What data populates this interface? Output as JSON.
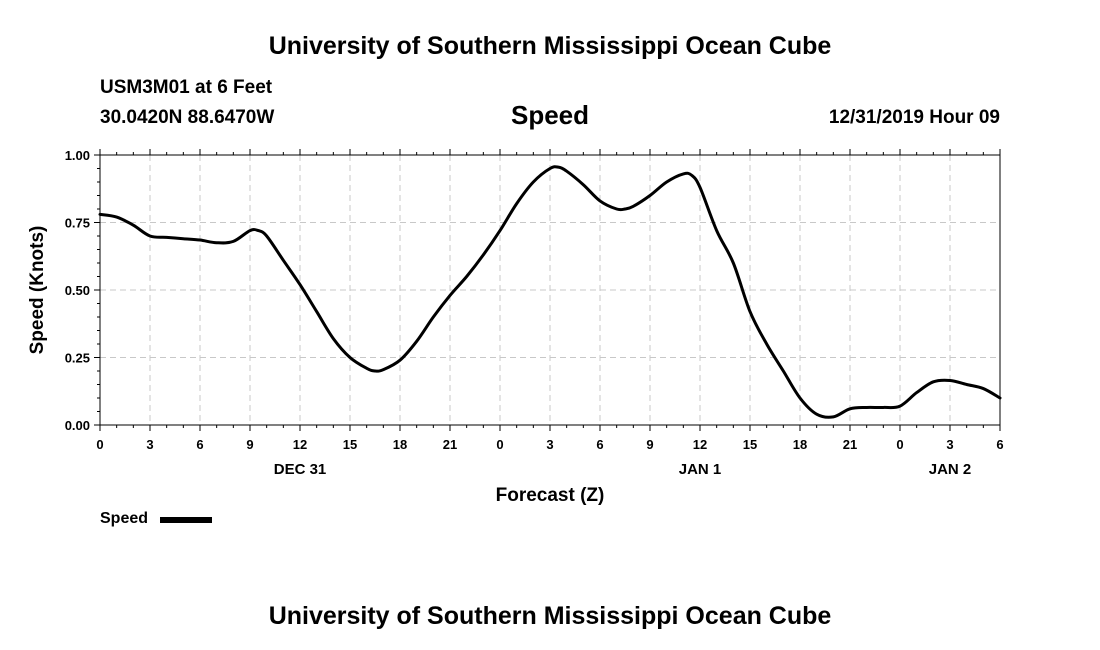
{
  "header": {
    "title_top": "University of Southern Mississippi Ocean Cube",
    "station": "USM3M01 at 6 Feet",
    "coordinates": "30.0420N 88.6470W",
    "parameter": "Speed",
    "datetime": "12/31/2019 Hour 09"
  },
  "footer": {
    "title_bottom": "University of Southern Mississippi Ocean Cube"
  },
  "legend": {
    "label": "Speed"
  },
  "chart_data": {
    "type": "line",
    "title": "Speed",
    "xlabel": "Forecast (Z)",
    "ylabel": "Speed (Knots)",
    "xlim": [
      0,
      54
    ],
    "ylim": [
      0,
      1
    ],
    "grid": true,
    "legend_position": "bottom-left",
    "x_ticks": [
      0,
      3,
      6,
      9,
      12,
      15,
      18,
      21,
      24,
      27,
      30,
      33,
      36,
      39,
      42,
      45,
      48,
      51,
      54
    ],
    "x_tick_labels": [
      "0",
      "3",
      "6",
      "9",
      "12",
      "15",
      "18",
      "21",
      "0",
      "3",
      "6",
      "9",
      "12",
      "15",
      "18",
      "21",
      "0",
      "3",
      "6"
    ],
    "date_labels": [
      {
        "hour": 12,
        "text": "DEC 31"
      },
      {
        "hour": 36,
        "text": "JAN 1"
      },
      {
        "hour": 51,
        "text": "JAN 2"
      }
    ],
    "y_ticks": [
      0,
      0.25,
      0.5,
      0.75,
      1.0
    ],
    "y_tick_labels": [
      "0.00",
      "0.25",
      "0.50",
      "0.75",
      "1.00"
    ],
    "series": [
      {
        "name": "Speed",
        "color": "#000000",
        "x": [
          0,
          1,
          2,
          3,
          4,
          5,
          6,
          7,
          8,
          9,
          9.5,
          10,
          11,
          12,
          13,
          14,
          15,
          16,
          16.5,
          17,
          18,
          19,
          20,
          21,
          22,
          23,
          24,
          25,
          26,
          27,
          27.5,
          28,
          29,
          30,
          31,
          31.5,
          32,
          33,
          34,
          35,
          35.5,
          36,
          37,
          38,
          39,
          40,
          41,
          42,
          43,
          44,
          45,
          46,
          47,
          48,
          49,
          50,
          51,
          52,
          53,
          54
        ],
        "values": [
          0.78,
          0.77,
          0.74,
          0.7,
          0.695,
          0.69,
          0.685,
          0.675,
          0.68,
          0.72,
          0.72,
          0.7,
          0.61,
          0.52,
          0.42,
          0.32,
          0.25,
          0.21,
          0.2,
          0.205,
          0.24,
          0.31,
          0.4,
          0.48,
          0.55,
          0.63,
          0.72,
          0.82,
          0.9,
          0.95,
          0.955,
          0.94,
          0.89,
          0.83,
          0.8,
          0.8,
          0.81,
          0.85,
          0.9,
          0.93,
          0.925,
          0.88,
          0.72,
          0.6,
          0.42,
          0.3,
          0.2,
          0.1,
          0.04,
          0.03,
          0.06,
          0.065,
          0.065,
          0.07,
          0.12,
          0.16,
          0.165,
          0.15,
          0.135,
          0.1
        ]
      }
    ]
  }
}
